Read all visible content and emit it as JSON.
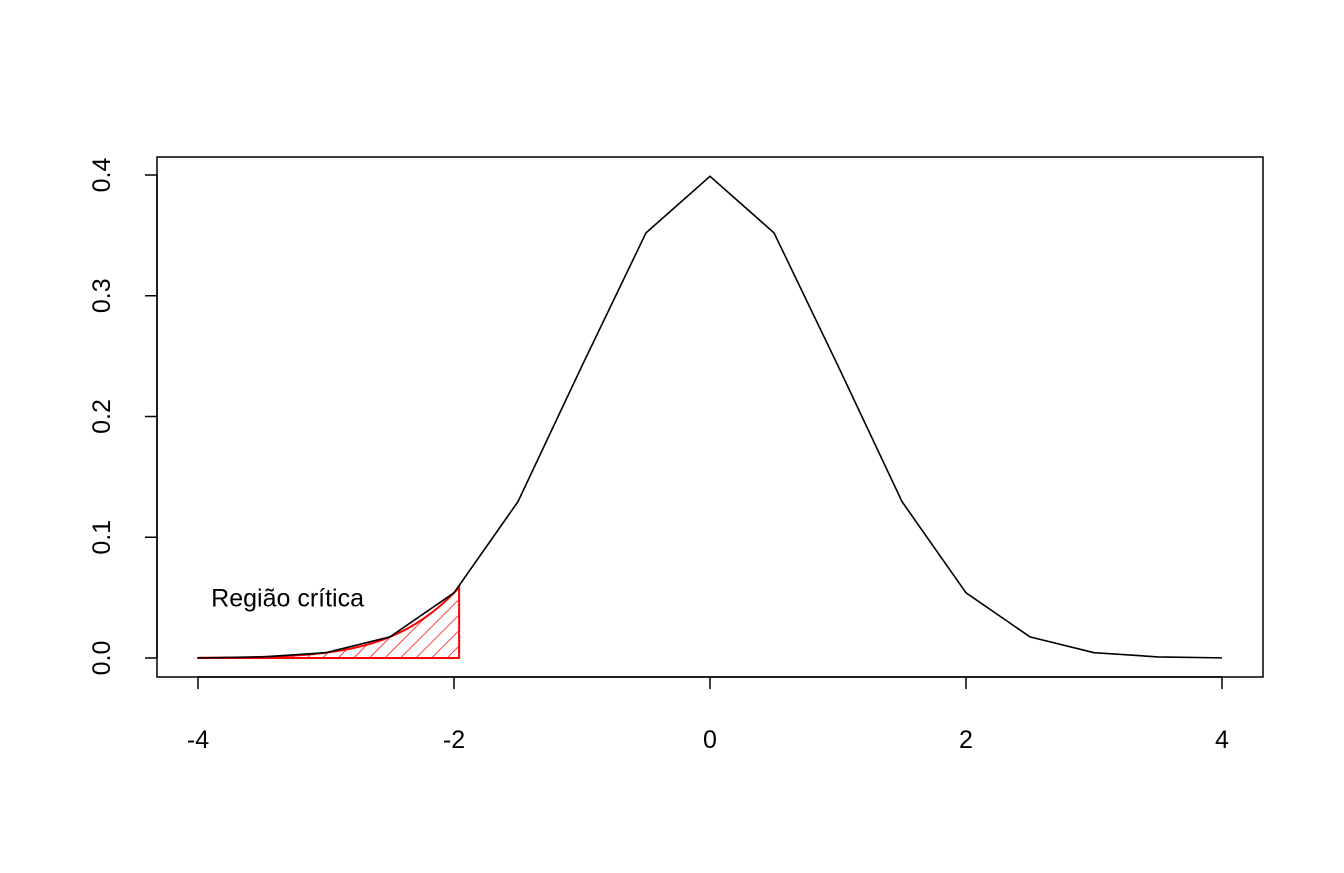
{
  "chart_data": {
    "type": "line",
    "title": "",
    "xlabel": "",
    "ylabel": "",
    "xlim": [
      -4,
      4
    ],
    "ylim": [
      0,
      0.4
    ],
    "x_ticks": [
      -4,
      -2,
      0,
      2,
      4
    ],
    "x_tick_labels": [
      "-4",
      "-2",
      "0",
      "2",
      "4"
    ],
    "y_ticks": [
      0.0,
      0.1,
      0.2,
      0.3,
      0.4
    ],
    "y_tick_labels": [
      "0.0",
      "0.1",
      "0.2",
      "0.3",
      "0.4"
    ],
    "grid": false,
    "series": [
      {
        "color": "#000000",
        "x": [
          -4.0,
          -3.5,
          -3.0,
          -2.5,
          -2.0,
          -1.5,
          -1.0,
          -0.5,
          0.0,
          0.5,
          1.0,
          1.5,
          2.0,
          2.5,
          3.0,
          3.5,
          4.0
        ],
        "y": [
          0.0001,
          0.0009,
          0.0044,
          0.0175,
          0.054,
          0.1295,
          0.242,
          0.3521,
          0.3989,
          0.3521,
          0.242,
          0.1295,
          0.054,
          0.0175,
          0.0044,
          0.0009,
          0.0001
        ]
      }
    ],
    "shaded_region": {
      "x_from": -4,
      "x_to": -1.96,
      "color": "#ff0000",
      "fill": "hatched"
    },
    "annotations": [
      {
        "text": "Região crítica",
        "x": -3.3,
        "y": 0.05
      }
    ]
  }
}
